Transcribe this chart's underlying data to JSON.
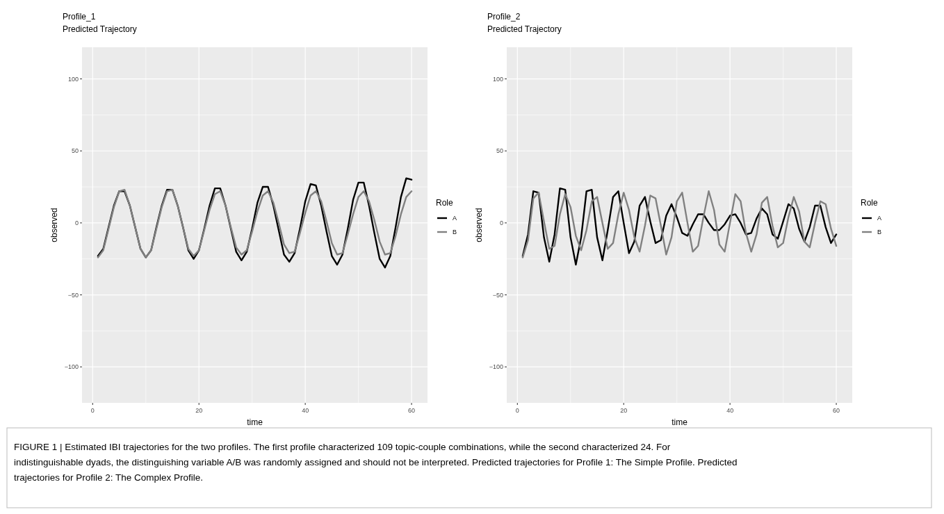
{
  "chart_data": [
    {
      "type": "line",
      "title": "Profile_1",
      "subtitle": "Predicted Trajectory",
      "xlabel": "time",
      "ylabel": "observed",
      "legend_title": "Role",
      "legend": "right",
      "grid": true,
      "xlim": [
        -2,
        63
      ],
      "ylim": [
        -125,
        122
      ],
      "xticks": [
        0,
        20,
        40,
        60
      ],
      "yticks": [
        -100,
        -50,
        0,
        50,
        100
      ],
      "x": [
        1,
        2,
        3,
        4,
        5,
        6,
        7,
        8,
        9,
        10,
        11,
        12,
        13,
        14,
        15,
        16,
        17,
        18,
        19,
        20,
        21,
        22,
        23,
        24,
        25,
        26,
        27,
        28,
        29,
        30,
        31,
        32,
        33,
        34,
        35,
        36,
        37,
        38,
        39,
        40,
        41,
        42,
        43,
        44,
        45,
        46,
        47,
        48,
        49,
        50,
        51,
        52,
        53,
        54,
        55,
        56,
        57,
        58,
        59,
        60
      ],
      "series": [
        {
          "name": "A",
          "color": "#000000",
          "values": [
            -23,
            -18,
            -3,
            12,
            22,
            22,
            12,
            -3,
            -18,
            -24,
            -19,
            -3,
            12,
            23,
            23,
            12,
            -3,
            -19,
            -25,
            -19,
            -4,
            12,
            24,
            24,
            12,
            -4,
            -20,
            -26,
            -20,
            -4,
            14,
            25,
            25,
            12,
            -5,
            -22,
            -27,
            -21,
            -4,
            15,
            27,
            26,
            12,
            -6,
            -23,
            -29,
            -22,
            -4,
            16,
            28,
            28,
            12,
            -7,
            -25,
            -31,
            -23,
            -3,
            18,
            31,
            30
          ]
        },
        {
          "name": "B",
          "color": "#808080",
          "values": [
            -24,
            -19,
            -4,
            11,
            22,
            23,
            12,
            -3,
            -18,
            -24,
            -19,
            -4,
            11,
            22,
            23,
            12,
            -3,
            -18,
            -23,
            -19,
            -5,
            9,
            20,
            22,
            12,
            -3,
            -17,
            -22,
            -19,
            -6,
            8,
            19,
            22,
            14,
            0,
            -15,
            -21,
            -20,
            -7,
            7,
            19,
            22,
            15,
            1,
            -14,
            -22,
            -21,
            -8,
            6,
            18,
            22,
            15,
            2,
            -13,
            -22,
            -21,
            -9,
            6,
            18,
            22
          ]
        }
      ],
      "annotations": [
        "FIGURE 1 | Estimated IBI trajectories for the two profiles. The first profile characterized 109 topic-couple combinations, while the second characterized 24. For indistinguishable dyads, the distinguishing variable A/B was randomly assigned and should not be interpreted. Predicted trajectories for Profile 1: The Simple Profile. Predicted trajectories for Profile 2: The Complex Profile."
      ]
    },
    {
      "type": "line",
      "title": "Profile_2",
      "subtitle": "Predicted Trajectory",
      "xlabel": "time",
      "ylabel": "observed",
      "legend_title": "Role",
      "legend": "right",
      "grid": true,
      "xlim": [
        -2,
        63
      ],
      "ylim": [
        -125,
        122
      ],
      "xticks": [
        0,
        20,
        40,
        60
      ],
      "yticks": [
        -100,
        -50,
        0,
        50,
        100
      ],
      "x": [
        1,
        2,
        3,
        4,
        5,
        6,
        7,
        8,
        9,
        10,
        11,
        12,
        13,
        14,
        15,
        16,
        17,
        18,
        19,
        20,
        21,
        22,
        23,
        24,
        25,
        26,
        27,
        28,
        29,
        30,
        31,
        32,
        33,
        34,
        35,
        36,
        37,
        38,
        39,
        40,
        41,
        42,
        43,
        44,
        45,
        46,
        47,
        48,
        49,
        50,
        51,
        52,
        53,
        54,
        55,
        56,
        57,
        58,
        59,
        60
      ],
      "series": [
        {
          "name": "A",
          "color": "#000000",
          "values": [
            -23,
            -8,
            22,
            21,
            -10,
            -27,
            -8,
            24,
            23,
            -10,
            -29,
            -10,
            22,
            23,
            -10,
            -26,
            -5,
            18,
            22,
            0,
            -21,
            -13,
            12,
            18,
            1,
            -14,
            -12,
            5,
            13,
            4,
            -7,
            -9,
            -1,
            6,
            6,
            0,
            -5,
            -5,
            -1,
            5,
            6,
            0,
            -8,
            -7,
            3,
            10,
            6,
            -8,
            -11,
            1,
            13,
            10,
            -4,
            -13,
            -3,
            12,
            12,
            -3,
            -14,
            -8
          ]
        },
        {
          "name": "B",
          "color": "#808080",
          "values": [
            -24,
            -12,
            17,
            21,
            1,
            -18,
            -16,
            6,
            20,
            11,
            -9,
            -19,
            -5,
            15,
            18,
            0,
            -18,
            -14,
            6,
            21,
            9,
            -10,
            -20,
            -2,
            19,
            17,
            -2,
            -22,
            -10,
            15,
            21,
            0,
            -20,
            -16,
            4,
            22,
            9,
            -15,
            -20,
            0,
            20,
            15,
            -7,
            -20,
            -8,
            14,
            18,
            -2,
            -17,
            -14,
            4,
            18,
            8,
            -13,
            -17,
            0,
            15,
            13,
            -4,
            -16
          ]
        }
      ]
    }
  ]
}
